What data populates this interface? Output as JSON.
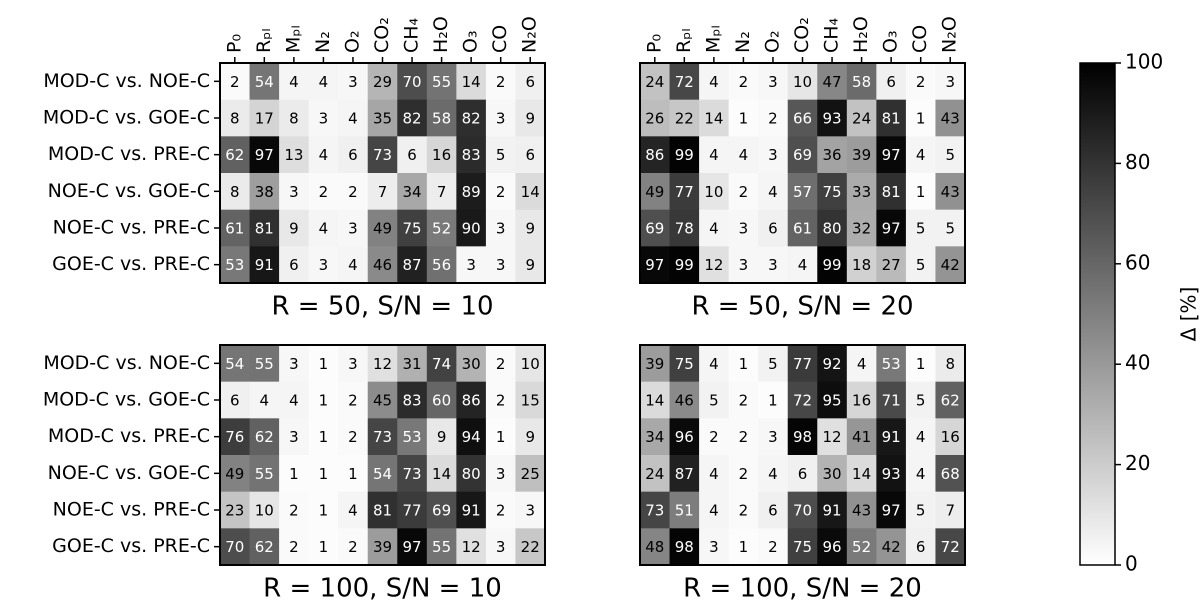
{
  "rows": [
    "MOD-C vs. NOE-C",
    "MOD-C vs. GOE-C",
    "MOD-C vs. PRE-C",
    "NOE-C vs. GOE-C",
    "NOE-C vs. PRE-C",
    "GOE-C vs. PRE-C"
  ],
  "columns": [
    "P₀",
    "Rₚₗ",
    "Mₚₗ",
    "N₂",
    "O₂",
    "CO₂",
    "CH₄",
    "H₂O",
    "O₃",
    "CO",
    "N₂O"
  ],
  "colorbar": {
    "label": "Δ [%]",
    "zlim": [
      0,
      100
    ],
    "ticks": [
      0,
      20,
      40,
      60,
      80,
      100
    ],
    "cmap": "gray_r"
  },
  "chart_data": [
    {
      "type": "heatmap",
      "title": "R = 50, S/N = 10",
      "values": [
        [
          2,
          54,
          4,
          4,
          3,
          29,
          70,
          55,
          14,
          2,
          6
        ],
        [
          8,
          17,
          8,
          3,
          4,
          35,
          82,
          58,
          82,
          3,
          9
        ],
        [
          62,
          97,
          13,
          4,
          6,
          73,
          6,
          16,
          83,
          5,
          6
        ],
        [
          8,
          38,
          3,
          2,
          2,
          7,
          34,
          7,
          89,
          2,
          14
        ],
        [
          61,
          81,
          9,
          4,
          3,
          49,
          75,
          52,
          90,
          3,
          9
        ],
        [
          53,
          91,
          6,
          3,
          4,
          46,
          87,
          56,
          3,
          3,
          9
        ]
      ]
    },
    {
      "type": "heatmap",
      "title": "R = 50, S/N = 20",
      "values": [
        [
          24,
          72,
          4,
          2,
          3,
          10,
          47,
          58,
          6,
          2,
          3
        ],
        [
          26,
          22,
          14,
          1,
          2,
          66,
          93,
          24,
          81,
          1,
          43
        ],
        [
          86,
          99,
          4,
          4,
          3,
          69,
          36,
          39,
          97,
          4,
          5
        ],
        [
          49,
          77,
          10,
          2,
          4,
          57,
          75,
          33,
          81,
          1,
          43
        ],
        [
          69,
          78,
          4,
          3,
          6,
          61,
          80,
          32,
          97,
          5,
          5
        ],
        [
          97,
          99,
          12,
          3,
          3,
          4,
          99,
          18,
          27,
          5,
          42
        ]
      ]
    },
    {
      "type": "heatmap",
      "title": "R = 100, S/N = 10",
      "values": [
        [
          54,
          55,
          3,
          1,
          3,
          12,
          31,
          74,
          30,
          2,
          10
        ],
        [
          6,
          4,
          4,
          1,
          2,
          45,
          83,
          60,
          86,
          2,
          15
        ],
        [
          76,
          62,
          3,
          1,
          2,
          73,
          53,
          9,
          94,
          1,
          9
        ],
        [
          49,
          55,
          1,
          1,
          1,
          54,
          73,
          14,
          80,
          3,
          25
        ],
        [
          23,
          10,
          2,
          1,
          4,
          81,
          77,
          69,
          91,
          2,
          3
        ],
        [
          70,
          62,
          2,
          1,
          2,
          39,
          97,
          55,
          12,
          3,
          22
        ]
      ]
    },
    {
      "type": "heatmap",
      "title": "R = 100, S/N = 20",
      "values": [
        [
          39,
          75,
          4,
          1,
          5,
          77,
          92,
          4,
          53,
          1,
          8
        ],
        [
          14,
          46,
          5,
          2,
          1,
          72,
          95,
          16,
          71,
          5,
          62
        ],
        [
          34,
          96,
          2,
          2,
          3,
          98,
          12,
          41,
          91,
          4,
          16
        ],
        [
          24,
          87,
          4,
          2,
          4,
          6,
          30,
          14,
          93,
          4,
          68
        ],
        [
          73,
          51,
          4,
          2,
          6,
          70,
          91,
          43,
          97,
          5,
          7
        ],
        [
          48,
          98,
          3,
          1,
          2,
          75,
          96,
          52,
          42,
          6,
          72
        ]
      ]
    }
  ]
}
